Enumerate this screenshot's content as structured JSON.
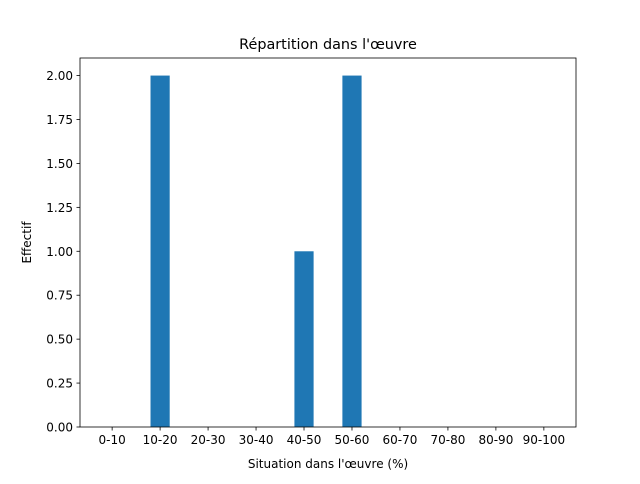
{
  "chart_data": {
    "type": "bar",
    "title": "Répartition dans l'œuvre",
    "xlabel": "Situation dans l'œuvre (%)",
    "ylabel": "Effectif",
    "categories": [
      "0-10",
      "10-20",
      "20-30",
      "30-40",
      "40-50",
      "50-60",
      "60-70",
      "70-80",
      "80-90",
      "90-100"
    ],
    "values": [
      0,
      2,
      0,
      0,
      1,
      2,
      0,
      0,
      0,
      0
    ],
    "ylim": [
      0,
      2.1
    ],
    "yticks": [
      "0.00",
      "0.25",
      "0.50",
      "0.75",
      "1.00",
      "1.25",
      "1.50",
      "1.75",
      "2.00"
    ],
    "bar_color": "#1f77b4",
    "grid": false
  }
}
